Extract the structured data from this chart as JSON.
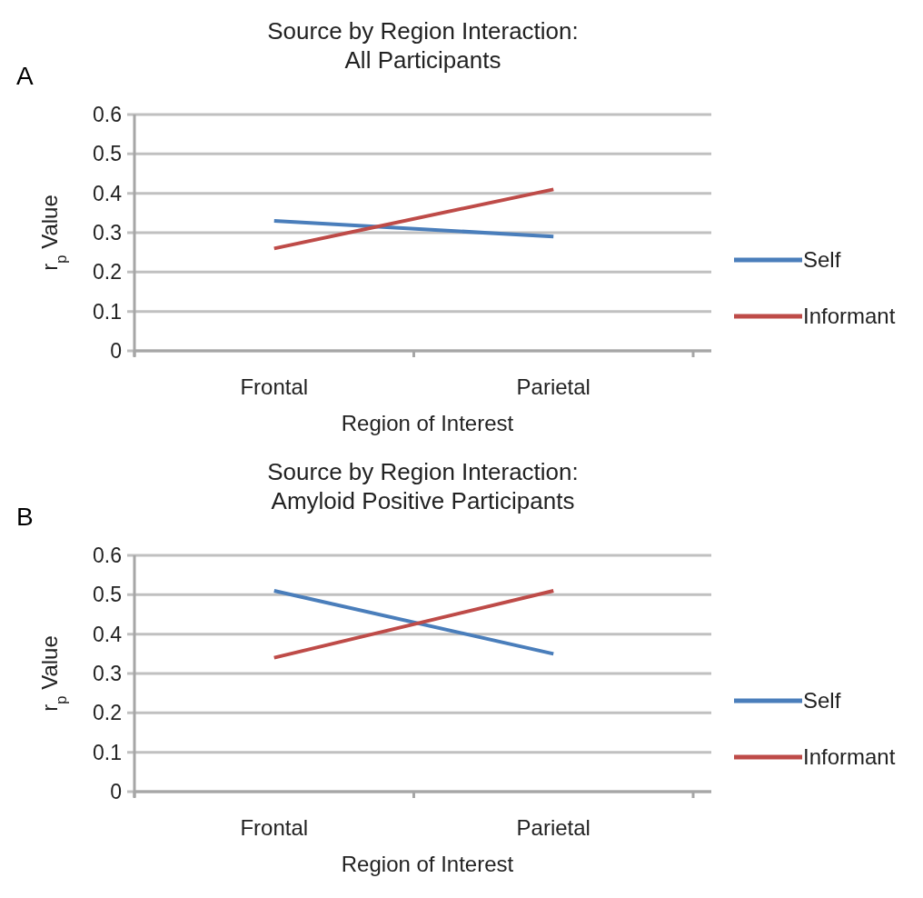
{
  "chart_data": [
    {
      "type": "line",
      "title": "Source by Region Interaction:\nAll Participants",
      "xlabel": "Region of Interest",
      "ylabel": "r$_{p}$ Value",
      "annotations": [
        "A"
      ],
      "categories": [
        "Frontal",
        "Parietal"
      ],
      "series": [
        {
          "name": "Self",
          "color": "#4a7ebb",
          "values": [
            0.33,
            0.29
          ]
        },
        {
          "name": "Informant",
          "color": "#be4b48",
          "values": [
            0.26,
            0.41
          ]
        }
      ],
      "ylim": [
        0,
        0.6
      ],
      "yticks": [
        0,
        0.1,
        0.2,
        0.3,
        0.4,
        0.5,
        0.6
      ],
      "grid": "y",
      "legend": "right",
      "marker": "none"
    },
    {
      "type": "line",
      "title": "Source by Region Interaction:\nAmyloid Positive Participants",
      "xlabel": "Region of Interest",
      "ylabel": "r$_{p}$ Value",
      "annotations": [
        "B"
      ],
      "categories": [
        "Frontal",
        "Parietal"
      ],
      "series": [
        {
          "name": "Self",
          "color": "#4a7ebb",
          "values": [
            0.51,
            0.35
          ]
        },
        {
          "name": "Informant",
          "color": "#be4b48",
          "values": [
            0.34,
            0.51
          ]
        }
      ],
      "ylim": [
        0,
        0.6
      ],
      "yticks": [
        0,
        0.1,
        0.2,
        0.3,
        0.4,
        0.5,
        0.6
      ],
      "grid": "y",
      "legend": "right",
      "marker": "none"
    }
  ]
}
